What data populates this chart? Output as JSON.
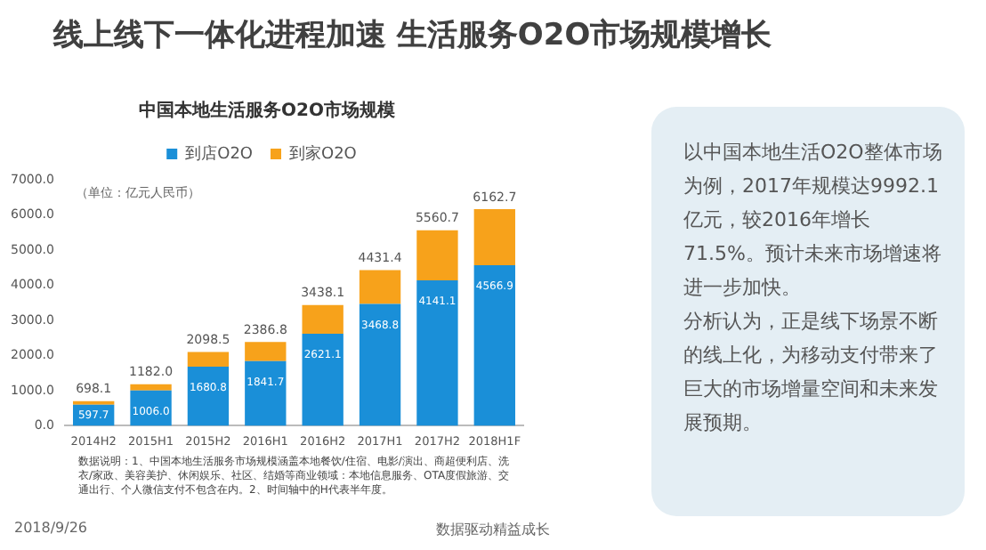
{
  "chart_data": [
    {
      "type": "bar",
      "title": "线上线下一体化进程加速  生活服务O2O市场规模增长",
      "subtitle": "中国本地生活服务O2O市场规模",
      "categories": [
        "2014H2",
        "2015H1",
        "2015H2",
        "2016H1",
        "2016H2",
        "2017H1",
        "2017H2",
        "2018H1F"
      ],
      "stacked": true,
      "series": [
        {
          "name": "到店O2O",
          "color": "#1a8fd8",
          "values": [
            597.7,
            1006.0,
            1680.8,
            1841.7,
            2621.1,
            3468.8,
            4141.1,
            4566.9
          ],
          "value_labels": [
            "597.7",
            "1006.0",
            "1680.8",
            "1841.7",
            "2621.1",
            "3468.8",
            "4141.1",
            "4566.9"
          ]
        },
        {
          "name": "到家O2O",
          "color": "#f7a21b",
          "values": [
            100.4,
            176.0,
            417.7,
            545.1,
            817.0,
            962.6,
            1419.6,
            1595.8
          ]
        }
      ],
      "totals": [
        "698.1",
        "1182.0",
        "2098.5",
        "2386.8",
        "3438.1",
        "4431.4",
        "5560.7",
        "6162.7"
      ],
      "ylim": [
        0,
        7000
      ],
      "yticks": [
        {
          "value": 0,
          "label": "0.0"
        },
        {
          "value": 1000,
          "label": "1000.0"
        },
        {
          "value": 2000,
          "label": "2000.0"
        },
        {
          "value": 3000,
          "label": "3000.0"
        },
        {
          "value": 4000,
          "label": "4000.0"
        },
        {
          "value": 5000,
          "label": "5000.0"
        },
        {
          "value": 6000,
          "label": "6000.0"
        },
        {
          "value": 7000,
          "label": "7000.0"
        }
      ],
      "grid": false,
      "legend": "top",
      "annotations": [
        "（单位：亿元人民币）",
        "数据说明：1、中国本地生活服务市场规模涵盖本地餐饮/住宿、电影/演出、商超便利店、洗衣/家政、美容美护、休闲娱乐、社区、结婚等商业领域：本地信息服务、OTA度假旅游、交通出行、个人微信支付不包含在内。2、时间轴中的H代表半年度。",
        "2018/9/26",
        "数据驱动精益成长"
      ]
    },
    {
      "type": "other",
      "annotations": [
        "以中国本地生活O2O整体市场为例，2017年规模达9992.1亿元，较2016年增长71.5%。预计未来市场增速将进一步加快。",
        "分析认为，正是线下场景不断的线上化，为移动支付带来了巨大的市场增量空间和未来发展预期。"
      ]
    }
  ]
}
